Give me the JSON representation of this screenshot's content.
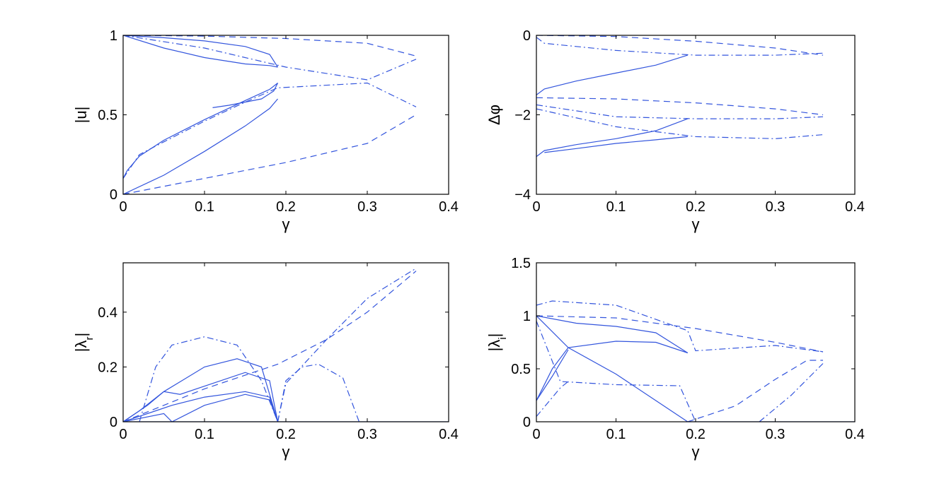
{
  "colors": {
    "line": "#3355dd",
    "axes": "#000000",
    "background": "#ffffff"
  },
  "chart_data": [
    {
      "type": "line",
      "title": "",
      "xlabel": "γ",
      "ylabel": "|u|",
      "xlim": [
        0,
        0.4
      ],
      "ylim": [
        0,
        1
      ],
      "xticks": [
        0,
        0.1,
        0.2,
        0.3,
        0.4
      ],
      "xtick_labels": [
        "0",
        "0.1",
        "0.2",
        "0.3",
        "0.4"
      ],
      "yticks": [
        0,
        0.5,
        1
      ],
      "ytick_labels": [
        "0",
        "0.5",
        "1"
      ],
      "grid": false,
      "series": [
        {
          "style": "solid",
          "x": [
            0,
            0.05,
            0.1,
            0.15,
            0.18,
            0.19
          ],
          "y": [
            1,
            0.985,
            0.965,
            0.93,
            0.88,
            0.8
          ]
        },
        {
          "style": "solid",
          "x": [
            0,
            0.05,
            0.1,
            0.15,
            0.18,
            0.19
          ],
          "y": [
            1,
            0.92,
            0.86,
            0.82,
            0.81,
            0.8
          ]
        },
        {
          "style": "solid",
          "x": [
            0,
            0.005,
            0.02,
            0.05,
            0.1,
            0.15,
            0.18,
            0.19
          ],
          "y": [
            0.1,
            0.15,
            0.24,
            0.34,
            0.47,
            0.59,
            0.66,
            0.7
          ]
        },
        {
          "style": "solid",
          "x": [
            0,
            0.05,
            0.1,
            0.15,
            0.18,
            0.19
          ],
          "y": [
            0,
            0.12,
            0.27,
            0.43,
            0.54,
            0.6
          ]
        },
        {
          "style": "solid",
          "x": [
            0.19,
            0.185,
            0.17,
            0.15,
            0.13,
            0.11
          ],
          "y": [
            0.7,
            0.65,
            0.6,
            0.58,
            0.56,
            0.545
          ]
        },
        {
          "style": "dashdot",
          "x": [
            0,
            0.1,
            0.2,
            0.3,
            0.36
          ],
          "y": [
            1,
            0.92,
            0.8,
            0.72,
            0.85
          ]
        },
        {
          "style": "dashdot",
          "x": [
            0,
            0.02,
            0.05,
            0.1,
            0.15,
            0.19,
            0.3,
            0.36
          ],
          "y": [
            0.1,
            0.25,
            0.33,
            0.46,
            0.58,
            0.67,
            0.7,
            0.55
          ]
        },
        {
          "style": "dashed",
          "x": [
            0,
            0.1,
            0.2,
            0.3,
            0.36
          ],
          "y": [
            1,
            0.995,
            0.98,
            0.95,
            0.87
          ]
        },
        {
          "style": "dashed",
          "x": [
            0,
            0.1,
            0.2,
            0.3,
            0.36
          ],
          "y": [
            0,
            0.1,
            0.2,
            0.32,
            0.5
          ]
        }
      ]
    },
    {
      "type": "line",
      "title": "",
      "xlabel": "γ",
      "ylabel": "Δφ",
      "xlim": [
        0,
        0.4
      ],
      "ylim": [
        -4,
        0
      ],
      "xticks": [
        0,
        0.1,
        0.2,
        0.3,
        0.4
      ],
      "xtick_labels": [
        "0",
        "0.1",
        "0.2",
        "0.3",
        "0.4"
      ],
      "yticks": [
        -4,
        -2,
        0
      ],
      "ytick_labels": [
        "−4",
        "−2",
        "0"
      ],
      "grid": false,
      "series": [
        {
          "style": "solid",
          "x": [
            0,
            0.01,
            0.05,
            0.1,
            0.15,
            0.19
          ],
          "y": [
            -1.5,
            -1.35,
            -1.15,
            -0.95,
            -0.75,
            -0.5
          ]
        },
        {
          "style": "solid",
          "x": [
            0,
            0.01,
            0.05,
            0.1,
            0.15,
            0.19
          ],
          "y": [
            -3.05,
            -2.9,
            -2.75,
            -2.6,
            -2.4,
            -2.1
          ]
        },
        {
          "style": "solid",
          "x": [
            0.01,
            0.05,
            0.1,
            0.15,
            0.19
          ],
          "y": [
            -2.95,
            -2.85,
            -2.72,
            -2.63,
            -2.55
          ]
        },
        {
          "style": "dashdot",
          "x": [
            0,
            0.01,
            0.1,
            0.2,
            0.3,
            0.36
          ],
          "y": [
            -0.05,
            -0.2,
            -0.38,
            -0.5,
            -0.5,
            -0.45
          ]
        },
        {
          "style": "dashdot",
          "x": [
            0,
            0.1,
            0.2,
            0.3,
            0.36
          ],
          "y": [
            -1.75,
            -2.05,
            -2.1,
            -2.1,
            -2.05
          ]
        },
        {
          "style": "dashdot",
          "x": [
            0,
            0.1,
            0.2,
            0.3,
            0.36
          ],
          "y": [
            -1.85,
            -2.3,
            -2.55,
            -2.6,
            -2.5
          ]
        },
        {
          "style": "dashed",
          "x": [
            0,
            0.1,
            0.2,
            0.3,
            0.36
          ],
          "y": [
            0,
            -0.03,
            -0.15,
            -0.32,
            -0.5
          ]
        },
        {
          "style": "dashed",
          "x": [
            0,
            0.1,
            0.2,
            0.3,
            0.36
          ],
          "y": [
            -1.57,
            -1.6,
            -1.7,
            -1.85,
            -2.0
          ]
        }
      ]
    },
    {
      "type": "line",
      "title": "",
      "xlabel": "γ",
      "ylabel": "|λr|",
      "xlim": [
        0,
        0.4
      ],
      "ylim": [
        0,
        0.58
      ],
      "xticks": [
        0,
        0.1,
        0.2,
        0.3,
        0.4
      ],
      "xtick_labels": [
        "0",
        "0.1",
        "0.2",
        "0.3",
        "0.4"
      ],
      "yticks": [
        0,
        0.2,
        0.4
      ],
      "ytick_labels": [
        "0",
        "0.2",
        "0.4"
      ],
      "grid": false,
      "series": [
        {
          "style": "solid",
          "x": [
            0,
            0.02,
            0.05,
            0.1,
            0.14,
            0.17,
            0.19
          ],
          "y": [
            0,
            0.04,
            0.11,
            0.2,
            0.23,
            0.2,
            0.0
          ]
        },
        {
          "style": "solid",
          "x": [
            0,
            0.03,
            0.05,
            0.07,
            0.1,
            0.15,
            0.18,
            0.19
          ],
          "y": [
            0,
            0.06,
            0.11,
            0.1,
            0.13,
            0.18,
            0.15,
            0.0
          ]
        },
        {
          "style": "solid",
          "x": [
            0,
            0.04,
            0.06,
            0.1,
            0.15,
            0.18,
            0.19
          ],
          "y": [
            0,
            0.04,
            0.06,
            0.09,
            0.11,
            0.09,
            0.0
          ]
        },
        {
          "style": "solid",
          "x": [
            0,
            0.05,
            0.06,
            0.1,
            0.15,
            0.18,
            0.19
          ],
          "y": [
            0,
            0.03,
            0.0,
            0.06,
            0.1,
            0.08,
            0.0
          ]
        },
        {
          "style": "solid",
          "x": [
            0,
            0.4
          ],
          "y": [
            0,
            0
          ]
        },
        {
          "style": "dashdot",
          "x": [
            0.02,
            0.04,
            0.06,
            0.1,
            0.14,
            0.17,
            0.19
          ],
          "y": [
            0.0,
            0.2,
            0.28,
            0.31,
            0.28,
            0.15,
            0.0
          ]
        },
        {
          "style": "dashdot",
          "x": [
            0.19,
            0.2,
            0.25,
            0.3,
            0.36
          ],
          "y": [
            0.0,
            0.14,
            0.3,
            0.45,
            0.56
          ]
        },
        {
          "style": "dashdot",
          "x": [
            0.19,
            0.2,
            0.22,
            0.24,
            0.27,
            0.29
          ],
          "y": [
            0.0,
            0.15,
            0.2,
            0.21,
            0.16,
            0.0
          ]
        },
        {
          "style": "dashed",
          "x": [
            0,
            0.1,
            0.19,
            0.25,
            0.3,
            0.36
          ],
          "y": [
            0,
            0.12,
            0.21,
            0.3,
            0.4,
            0.55
          ]
        }
      ]
    },
    {
      "type": "line",
      "title": "",
      "xlabel": "γ",
      "ylabel": "|λi|",
      "xlim": [
        0,
        0.4
      ],
      "ylim": [
        0,
        1.5
      ],
      "xticks": [
        0,
        0.1,
        0.2,
        0.3,
        0.4
      ],
      "xtick_labels": [
        "0",
        "0.1",
        "0.2",
        "0.3",
        "0.4"
      ],
      "yticks": [
        0,
        0.5,
        1,
        1.5
      ],
      "ytick_labels": [
        "0",
        "0.5",
        "1",
        "1.5"
      ],
      "grid": false,
      "series": [
        {
          "style": "solid",
          "x": [
            0,
            0.05,
            0.1,
            0.15,
            0.19
          ],
          "y": [
            1,
            0.93,
            0.9,
            0.84,
            0.65
          ]
        },
        {
          "style": "solid",
          "x": [
            0,
            0.02,
            0.04,
            0.1,
            0.15,
            0.19
          ],
          "y": [
            0.2,
            0.5,
            0.7,
            0.76,
            0.75,
            0.65
          ]
        },
        {
          "style": "solid",
          "x": [
            0,
            0.04,
            0.1,
            0.15,
            0.19
          ],
          "y": [
            1,
            0.7,
            0.45,
            0.2,
            0.0
          ]
        },
        {
          "style": "solid",
          "x": [
            0,
            0.02,
            0.04
          ],
          "y": [
            0.2,
            0.43,
            0.68
          ]
        },
        {
          "style": "dashdot",
          "x": [
            0,
            0.02,
            0.1,
            0.19,
            0.2,
            0.3,
            0.36
          ],
          "y": [
            1.1,
            1.14,
            1.1,
            0.86,
            0.67,
            0.72,
            0.66
          ]
        },
        {
          "style": "dashdot",
          "x": [
            0,
            0.03,
            0.1,
            0.18,
            0.2
          ],
          "y": [
            0.95,
            0.38,
            0.35,
            0.34,
            0.0
          ]
        },
        {
          "style": "dashdot",
          "x": [
            0,
            0.03,
            0.04
          ],
          "y": [
            0.05,
            0.32,
            0.38
          ]
        },
        {
          "style": "dashdot",
          "x": [
            0.28,
            0.32,
            0.36
          ],
          "y": [
            0.0,
            0.25,
            0.55
          ]
        },
        {
          "style": "dashed",
          "x": [
            0,
            0.1,
            0.2,
            0.3,
            0.36
          ],
          "y": [
            1,
            0.98,
            0.88,
            0.75,
            0.66
          ]
        },
        {
          "style": "dashed",
          "x": [
            0.19,
            0.25,
            0.3,
            0.34,
            0.36
          ],
          "y": [
            0.0,
            0.15,
            0.4,
            0.58,
            0.58
          ]
        },
        {
          "style": "solid",
          "x": [
            0.19,
            0.4
          ],
          "y": [
            0,
            0
          ]
        }
      ]
    }
  ]
}
